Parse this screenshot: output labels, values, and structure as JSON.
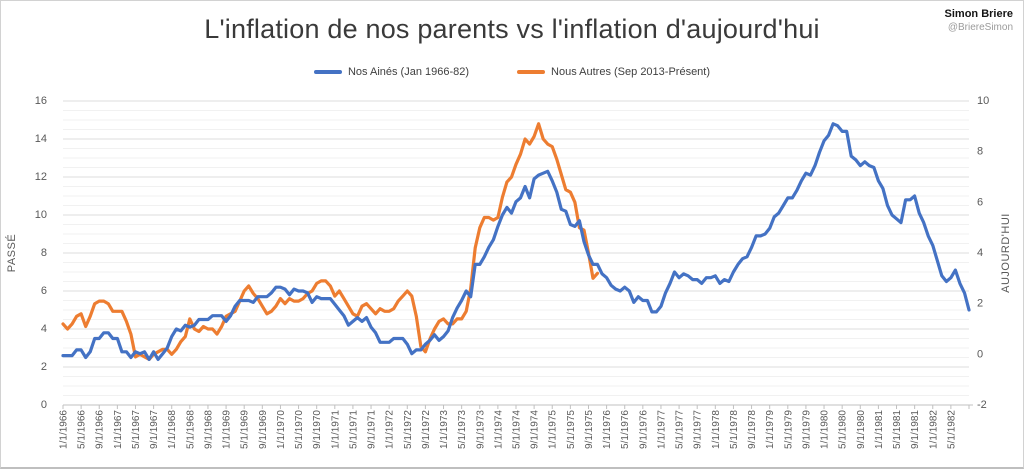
{
  "attribution": {
    "name": "Simon Briere",
    "handle": "@BriereSimon"
  },
  "chart_data": {
    "type": "line",
    "title": "L'inflation de nos parents vs l'inflation d'aujourd'hui",
    "legend_position": "top",
    "grid": true,
    "left_axis": {
      "title": "PASSÉ",
      "min": 0,
      "max": 16,
      "major": 2,
      "minor": 0.5,
      "ticks": [
        "0",
        "2",
        "4",
        "6",
        "8",
        "10",
        "12",
        "14",
        "16"
      ]
    },
    "right_axis": {
      "title": "AUJOURD'HUI",
      "min": -2,
      "max": 10,
      "major": 2,
      "ticks": [
        "-2",
        "0",
        "2",
        "4",
        "6",
        "8",
        "10"
      ]
    },
    "x_tick_step_months": 4,
    "x_tick_labels": [
      "1/1/1966",
      "5/1/1966",
      "9/1/1966",
      "1/1/1967",
      "5/1/1967",
      "9/1/1967",
      "1/1/1968",
      "5/1/1968",
      "9/1/1968",
      "1/1/1969",
      "5/1/1969",
      "9/1/1969",
      "1/1/1970",
      "5/1/1970",
      "9/1/1970",
      "1/1/1971",
      "5/1/1971",
      "9/1/1971",
      "1/1/1972",
      "5/1/1972",
      "9/1/1972",
      "1/1/1973",
      "5/1/1973",
      "9/1/1973",
      "1/1/1974",
      "5/1/1974",
      "9/1/1974",
      "1/1/1975",
      "5/1/1975",
      "9/1/1975",
      "1/1/1976",
      "5/1/1976",
      "9/1/1976",
      "1/1/1977",
      "5/1/1977",
      "9/1/1977",
      "1/1/1978",
      "5/1/1978",
      "9/1/1978",
      "1/1/1979",
      "5/1/1979",
      "9/1/1979",
      "1/1/1980",
      "5/1/1980",
      "9/1/1980",
      "1/1/1981",
      "5/1/1981",
      "9/1/1981",
      "1/1/1982",
      "5/1/1982"
    ],
    "series": [
      {
        "name": "Nos Ainés (Jan 1966-82)",
        "color": "#4472C4",
        "axis": "left",
        "start": "1/1/1966",
        "values": [
          2.6,
          2.6,
          2.6,
          2.9,
          2.9,
          2.5,
          2.8,
          3.5,
          3.5,
          3.8,
          3.8,
          3.5,
          3.5,
          2.8,
          2.8,
          2.5,
          2.8,
          2.7,
          2.8,
          2.4,
          2.8,
          2.4,
          2.7,
          3.0,
          3.6,
          4.0,
          3.9,
          4.2,
          4.1,
          4.2,
          4.5,
          4.5,
          4.5,
          4.7,
          4.7,
          4.7,
          4.4,
          4.7,
          5.2,
          5.5,
          5.5,
          5.5,
          5.4,
          5.7,
          5.7,
          5.7,
          5.9,
          6.2,
          6.2,
          6.1,
          5.8,
          6.1,
          6.0,
          6.0,
          5.9,
          5.4,
          5.7,
          5.6,
          5.6,
          5.6,
          5.3,
          5.0,
          4.7,
          4.2,
          4.4,
          4.6,
          4.4,
          4.6,
          4.1,
          3.8,
          3.3,
          3.3,
          3.3,
          3.5,
          3.5,
          3.5,
          3.2,
          2.7,
          2.9,
          2.9,
          3.2,
          3.4,
          3.7,
          3.4,
          3.6,
          3.9,
          4.6,
          5.1,
          5.5,
          6.0,
          5.7,
          7.4,
          7.4,
          7.8,
          8.3,
          8.7,
          9.4,
          10.0,
          10.4,
          10.1,
          10.7,
          10.9,
          11.5,
          10.9,
          11.9,
          12.1,
          12.2,
          12.3,
          11.8,
          11.2,
          10.3,
          10.2,
          9.5,
          9.4,
          9.7,
          8.6,
          7.9,
          7.4,
          7.4,
          6.9,
          6.7,
          6.3,
          6.1,
          6.0,
          6.2,
          6.0,
          5.4,
          5.7,
          5.5,
          5.5,
          4.9,
          4.9,
          5.2,
          5.9,
          6.4,
          7.0,
          6.7,
          6.9,
          6.8,
          6.6,
          6.6,
          6.4,
          6.7,
          6.7,
          6.8,
          6.4,
          6.6,
          6.5,
          7.0,
          7.4,
          7.7,
          7.8,
          8.3,
          8.9,
          8.9,
          9.0,
          9.3,
          9.9,
          10.1,
          10.5,
          10.9,
          10.9,
          11.3,
          11.8,
          12.2,
          12.1,
          12.6,
          13.3,
          13.9,
          14.2,
          14.8,
          14.7,
          14.4,
          14.4,
          13.1,
          12.9,
          12.6,
          12.8,
          12.6,
          12.5,
          11.8,
          11.4,
          10.5,
          10.0,
          9.8,
          9.6,
          10.8,
          10.8,
          11.0,
          10.1,
          9.6,
          8.9,
          8.4,
          7.6,
          6.8,
          6.5,
          6.7,
          7.1,
          6.4,
          5.9,
          5.0
        ]
      },
      {
        "name": "Nous Autres (Sep 2013-Présent)",
        "color": "#ED7D31",
        "axis": "right",
        "start": "9/1/2013",
        "values": [
          1.2,
          1.0,
          1.2,
          1.5,
          1.6,
          1.1,
          1.5,
          2.0,
          2.1,
          2.1,
          2.0,
          1.7,
          1.7,
          1.7,
          1.3,
          0.8,
          -0.1,
          0.0,
          -0.1,
          -0.2,
          0.0,
          0.1,
          0.2,
          0.2,
          0.0,
          0.2,
          0.5,
          0.7,
          1.4,
          1.0,
          0.9,
          1.1,
          1.0,
          1.0,
          0.8,
          1.1,
          1.5,
          1.6,
          1.7,
          2.1,
          2.5,
          2.7,
          2.4,
          2.2,
          1.9,
          1.6,
          1.7,
          1.9,
          2.2,
          2.0,
          2.2,
          2.1,
          2.1,
          2.2,
          2.4,
          2.5,
          2.8,
          2.9,
          2.9,
          2.7,
          2.3,
          2.5,
          2.2,
          1.9,
          1.6,
          1.5,
          1.9,
          2.0,
          1.8,
          1.6,
          1.8,
          1.7,
          1.7,
          1.8,
          2.1,
          2.3,
          2.5,
          2.3,
          1.5,
          0.3,
          0.1,
          0.6,
          1.0,
          1.3,
          1.4,
          1.2,
          1.2,
          1.4,
          1.4,
          1.7,
          2.6,
          4.2,
          5.0,
          5.4,
          5.4,
          5.3,
          5.4,
          6.2,
          6.8,
          7.0,
          7.5,
          7.9,
          8.5,
          8.3,
          8.6,
          9.1,
          8.5,
          8.3,
          8.2,
          7.7,
          7.1,
          6.5,
          6.4,
          6.0,
          5.0,
          4.9,
          4.0,
          3.0,
          3.2
        ]
      }
    ],
    "colors": {
      "major_grid": "#dcdcdc",
      "minor_grid": "#f1f1f1",
      "axis_line": "#c0c0c0",
      "tick_text": "#595959"
    }
  }
}
